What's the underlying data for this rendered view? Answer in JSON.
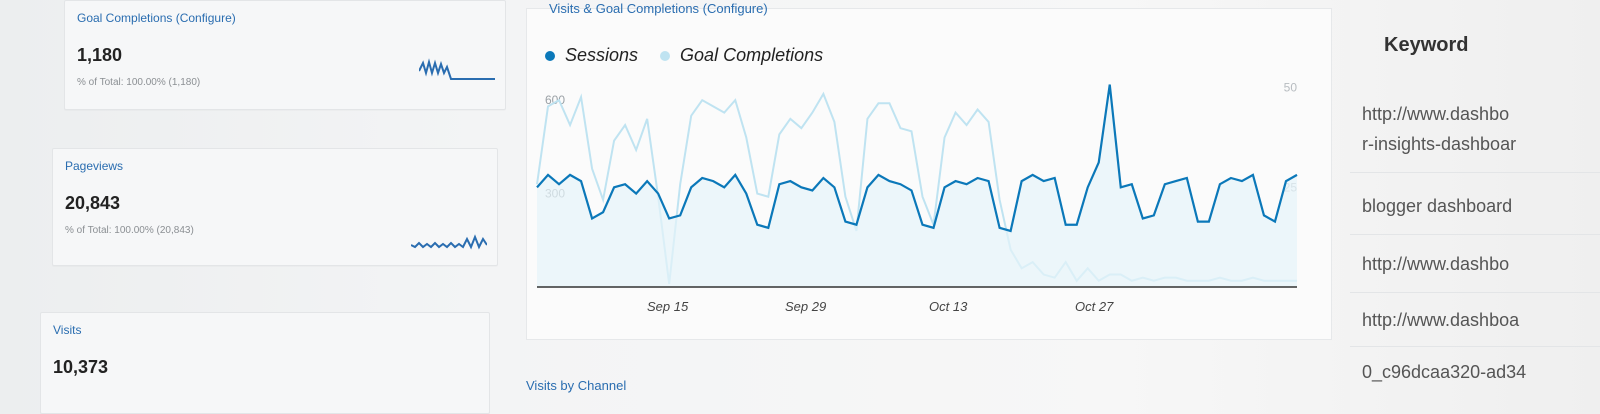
{
  "metrics": [
    {
      "title": "Goal Completions (Configure)",
      "value": "1,180",
      "sub": "% of Total: 100.00% (1,180)"
    },
    {
      "title": "Pageviews",
      "value": "20,843",
      "sub": "% of Total: 100.00% (20,843)"
    },
    {
      "title": "Visits",
      "value": "10,373"
    }
  ],
  "chart": {
    "header": "Visits & Goal Completions (Configure)",
    "legend": [
      {
        "label": "Sessions",
        "color": "#0b78b9"
      },
      {
        "label": "Goal Completions",
        "color": "#bfe3f1"
      }
    ]
  },
  "chart_data": {
    "type": "line",
    "x_labels": [
      "Sep 15",
      "Sep 29",
      "Oct 13",
      "Oct 27"
    ],
    "left_axis": {
      "ticks": [
        "600",
        "300"
      ],
      "ylim": [
        0,
        700
      ]
    },
    "right_axis": {
      "ticks": [
        "50",
        "25"
      ]
    },
    "series": [
      {
        "name": "Sessions",
        "values": [
          320,
          360,
          330,
          360,
          340,
          220,
          240,
          320,
          330,
          300,
          340,
          300,
          220,
          230,
          320,
          350,
          340,
          320,
          360,
          300,
          200,
          190,
          330,
          340,
          320,
          310,
          350,
          320,
          210,
          200,
          320,
          360,
          340,
          330,
          310,
          200,
          190,
          320,
          340,
          330,
          350,
          340,
          190,
          180,
          340,
          360,
          340,
          350,
          200,
          200,
          320,
          400,
          650,
          320,
          330,
          220,
          230,
          330,
          340,
          350,
          210,
          210,
          330,
          350,
          340,
          360,
          230,
          210,
          340,
          360
        ]
      },
      {
        "name": "Goal Completions",
        "values": [
          330,
          580,
          600,
          520,
          610,
          380,
          280,
          470,
          520,
          440,
          540,
          290,
          10,
          330,
          550,
          600,
          580,
          560,
          600,
          480,
          300,
          290,
          490,
          540,
          510,
          560,
          620,
          530,
          290,
          180,
          540,
          590,
          590,
          510,
          500,
          290,
          200,
          480,
          560,
          520,
          570,
          530,
          280,
          120,
          60,
          80,
          40,
          30,
          80,
          20,
          60,
          20,
          40,
          40,
          20,
          30,
          20,
          30,
          30,
          20,
          20,
          20,
          30,
          20,
          20,
          30,
          20,
          20,
          20,
          20
        ]
      }
    ]
  },
  "bottom": {
    "title": "Visits by Channel"
  },
  "keywords": {
    "header": "Keyword",
    "rows": [
      "http://www.dashbo",
      "r-insights-dashboar",
      "blogger dashboard",
      "http://www.dashbo",
      "http://www.dashboa",
      "0_c96dcaa320-ad34"
    ]
  }
}
